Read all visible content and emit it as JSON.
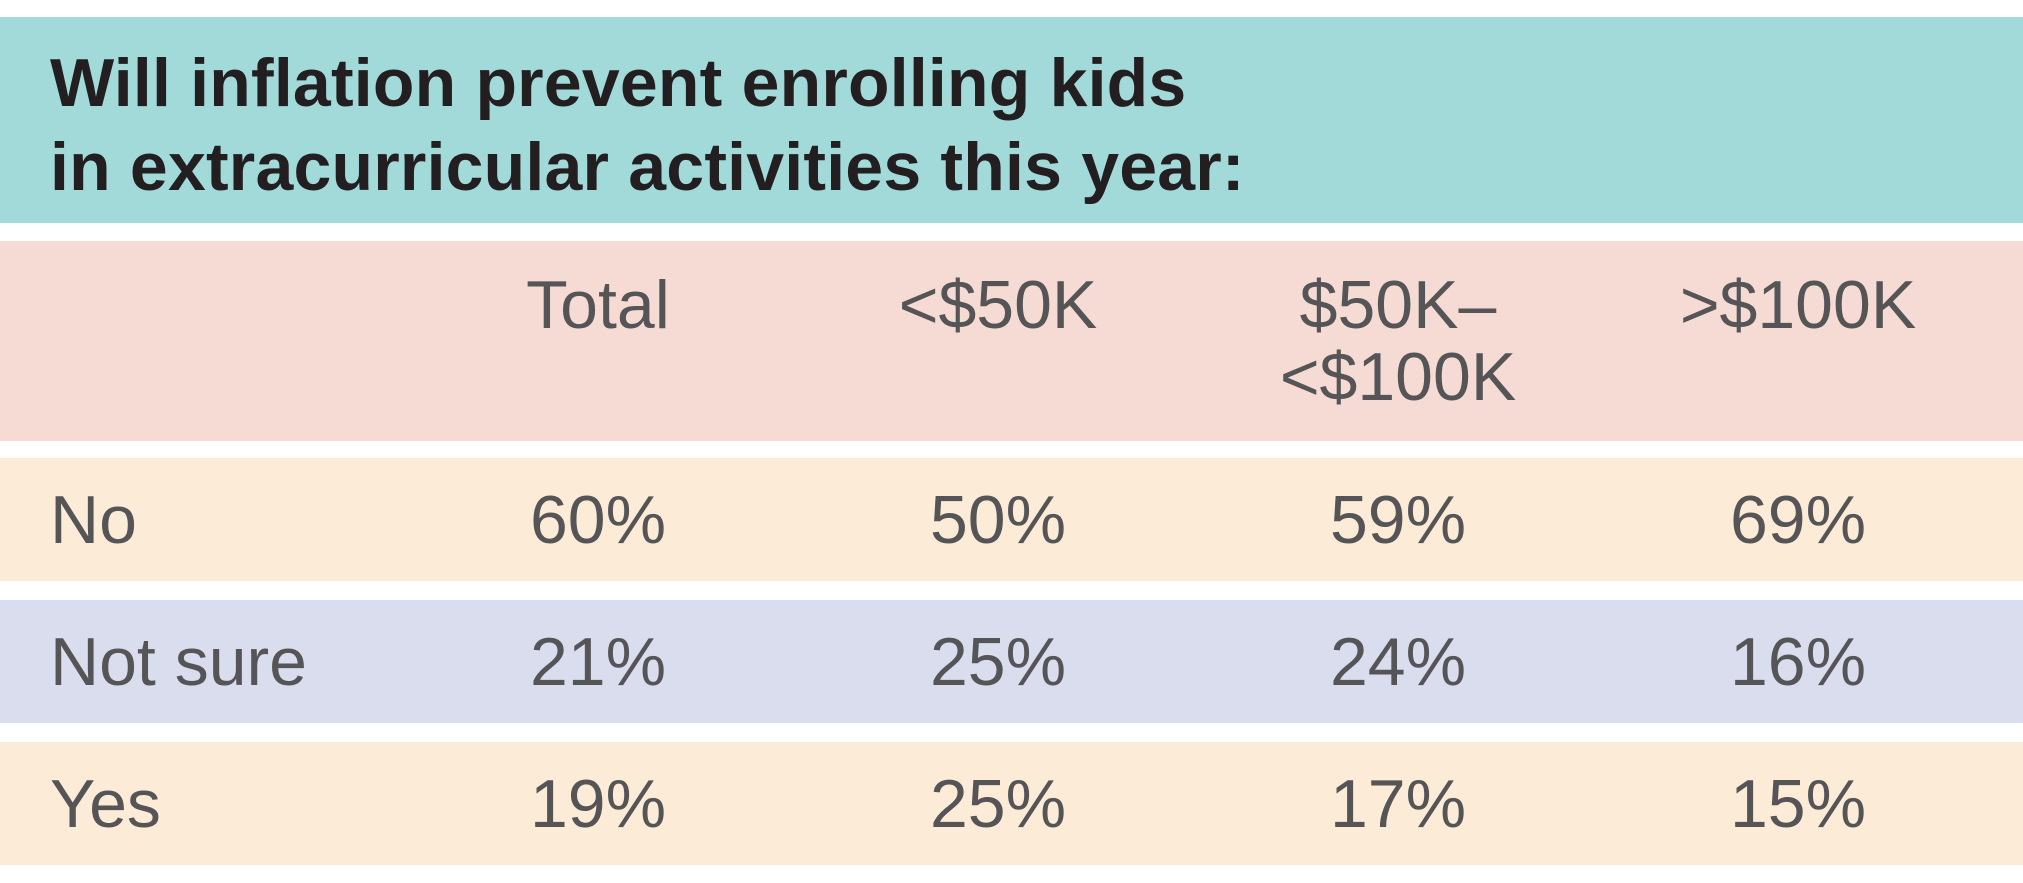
{
  "chart_data": {
    "type": "table",
    "title": "Will inflation prevent enrolling kids in extracurricular activities this year:",
    "title_lines": [
      "Will inflation prevent enrolling kids",
      "in extracurricular activities this year:"
    ],
    "columns": [
      {
        "label": "Total",
        "lines": [
          "Total"
        ]
      },
      {
        "label": "<$50K",
        "lines": [
          "<$50K"
        ]
      },
      {
        "label": "$50K–<$100K",
        "lines": [
          "$50K–",
          "<$100K"
        ]
      },
      {
        "label": ">$100K",
        "lines": [
          ">$100K"
        ]
      }
    ],
    "rows": [
      {
        "label": "No",
        "values": [
          "60%",
          "50%",
          "59%",
          "69%"
        ]
      },
      {
        "label": "Not sure",
        "values": [
          "21%",
          "25%",
          "24%",
          "16%"
        ]
      },
      {
        "label": "Yes",
        "values": [
          "19%",
          "25%",
          "17%",
          "15%"
        ]
      }
    ]
  },
  "colors": {
    "title_band": "#a2dada",
    "header_band": "#f5dbd3",
    "row_no": "#fcebd7",
    "row_not_sure": "#d9ddee",
    "row_yes": "#fcebd7",
    "title_text": "#231f20",
    "body_text": "#555456"
  }
}
